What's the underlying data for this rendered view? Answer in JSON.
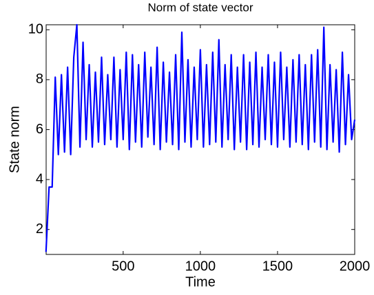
{
  "chart_data": {
    "type": "line",
    "title": "Norm of state vector",
    "x_label": "Time",
    "y_label": "State norm",
    "x": [
      0,
      20,
      40,
      60,
      80,
      100,
      120,
      140,
      160,
      180,
      200,
      220,
      240,
      260,
      280,
      300,
      320,
      340,
      360,
      380,
      400,
      420,
      440,
      460,
      480,
      500,
      520,
      540,
      560,
      580,
      600,
      620,
      640,
      660,
      680,
      700,
      720,
      740,
      760,
      780,
      800,
      820,
      840,
      860,
      880,
      900,
      920,
      940,
      960,
      980,
      1000,
      1020,
      1040,
      1060,
      1080,
      1100,
      1120,
      1140,
      1160,
      1180,
      1200,
      1220,
      1240,
      1260,
      1280,
      1300,
      1320,
      1340,
      1360,
      1380,
      1400,
      1420,
      1440,
      1460,
      1480,
      1500,
      1520,
      1540,
      1560,
      1580,
      1600,
      1620,
      1640,
      1660,
      1680,
      1700,
      1720,
      1740,
      1760,
      1780,
      1800,
      1820,
      1840,
      1860,
      1880,
      1900,
      1920,
      1940,
      1960,
      1980,
      2000
    ],
    "series": [
      {
        "name": "State norm",
        "color": "#0000ff",
        "values": [
          1.1,
          3.7,
          3.7,
          8.1,
          5.0,
          8.2,
          5.1,
          8.5,
          5.0,
          8.9,
          10.2,
          5.3,
          9.5,
          5.6,
          8.6,
          5.3,
          8.3,
          5.5,
          8.9,
          5.4,
          8.2,
          5.6,
          8.9,
          5.3,
          8.4,
          5.6,
          9.1,
          5.2,
          9.0,
          5.5,
          8.6,
          5.3,
          9.1,
          5.7,
          8.5,
          5.4,
          9.3,
          5.2,
          8.7,
          5.5,
          8.3,
          5.4,
          9.0,
          5.2,
          9.9,
          5.5,
          8.8,
          5.3,
          8.5,
          5.6,
          9.2,
          5.3,
          8.6,
          5.4,
          9.1,
          5.5,
          9.6,
          5.3,
          8.6,
          5.6,
          9.0,
          5.2,
          8.5,
          5.5,
          9.0,
          5.2,
          8.7,
          5.4,
          9.1,
          5.3,
          8.5,
          5.6,
          9.0,
          5.4,
          8.7,
          5.3,
          9.1,
          5.6,
          8.5,
          5.3,
          8.8,
          5.5,
          9.0,
          5.4,
          8.6,
          5.2,
          9.0,
          5.5,
          9.2,
          5.3,
          10.1,
          5.2,
          8.6,
          5.5,
          8.4,
          5.1,
          9.1,
          5.4,
          8.2,
          5.6,
          6.4
        ]
      }
    ],
    "xlim": [
      1,
      2000
    ],
    "ylim": [
      1,
      10.2
    ],
    "xticks": [
      500,
      1000,
      1500,
      2000
    ],
    "yticks": [
      2,
      4,
      6,
      8,
      10
    ]
  }
}
